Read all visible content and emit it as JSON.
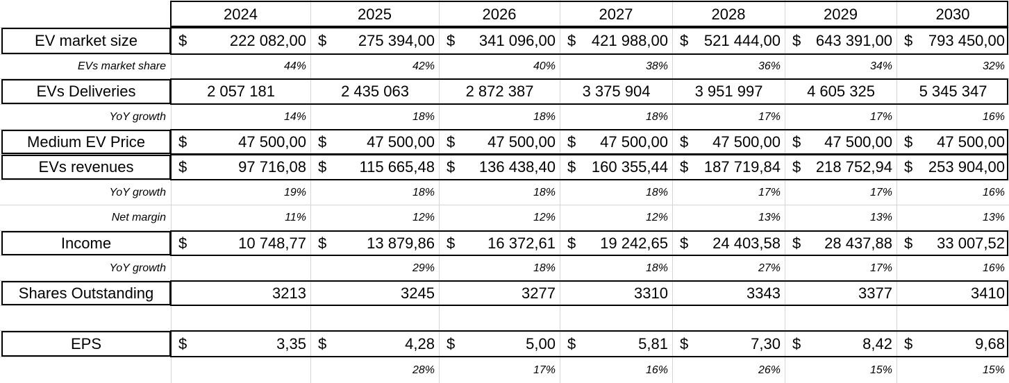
{
  "years": [
    "2024",
    "2025",
    "2026",
    "2027",
    "2028",
    "2029",
    "2030"
  ],
  "currency_symbol": "$",
  "rows": [
    {
      "key": "market_size",
      "label": "EV market size",
      "kind": "currency",
      "values": [
        "222 082,00",
        "275 394,00",
        "341 096,00",
        "421 988,00",
        "521 444,00",
        "643 391,00",
        "793 450,00"
      ]
    },
    {
      "key": "market_share",
      "label": "EVs market share",
      "kind": "pct",
      "values": [
        "44%",
        "42%",
        "40%",
        "38%",
        "36%",
        "34%",
        "32%"
      ]
    },
    {
      "key": "deliveries",
      "label": "EVs Deliveries",
      "kind": "centered",
      "values": [
        "2 057 181",
        "2 435 063",
        "2 872 387",
        "3 375 904",
        "3 951 997",
        "4 605 325",
        "5 345 347"
      ]
    },
    {
      "key": "deliveries_yoy",
      "label": "YoY growth",
      "kind": "pct",
      "values": [
        "14%",
        "18%",
        "18%",
        "18%",
        "17%",
        "17%",
        "16%"
      ]
    },
    {
      "key": "ev_price",
      "label": "Medium EV Price",
      "kind": "currency",
      "values": [
        "47 500,00",
        "47 500,00",
        "47 500,00",
        "47 500,00",
        "47 500,00",
        "47 500,00",
        "47 500,00"
      ]
    },
    {
      "key": "revenues",
      "label": "EVs revenues",
      "kind": "currency",
      "values": [
        "97 716,08",
        "115 665,48",
        "136 438,40",
        "160 355,44",
        "187 719,84",
        "218 752,94",
        "253 904,00"
      ]
    },
    {
      "key": "revenues_yoy",
      "label": "YoY growth",
      "kind": "pct",
      "values": [
        "19%",
        "18%",
        "18%",
        "18%",
        "17%",
        "17%",
        "16%"
      ]
    },
    {
      "key": "net_margin",
      "label": "Net margin",
      "kind": "pct",
      "values": [
        "11%",
        "12%",
        "12%",
        "12%",
        "13%",
        "13%",
        "13%"
      ]
    },
    {
      "key": "income",
      "label": "Income",
      "kind": "currency",
      "values": [
        "10 748,77",
        "13 879,86",
        "16 372,61",
        "19 242,65",
        "24 403,58",
        "28 437,88",
        "33 007,52"
      ]
    },
    {
      "key": "income_yoy",
      "label": "YoY growth",
      "kind": "pct",
      "values": [
        "",
        "29%",
        "18%",
        "18%",
        "27%",
        "17%",
        "16%"
      ]
    },
    {
      "key": "shares",
      "label": "Shares Outstanding",
      "kind": "right",
      "values": [
        "3213",
        "3245",
        "3277",
        "3310",
        "3343",
        "3377",
        "3410"
      ]
    },
    {
      "key": "blank",
      "label": "",
      "kind": "blank",
      "values": [
        "",
        "",
        "",
        "",
        "",
        "",
        ""
      ]
    },
    {
      "key": "eps",
      "label": "EPS",
      "kind": "currency",
      "values": [
        "3,35",
        "4,28",
        "5,00",
        "5,81",
        "7,30",
        "8,42",
        "9,68"
      ]
    },
    {
      "key": "eps_yoy",
      "label": "",
      "kind": "pct",
      "values": [
        "",
        "28%",
        "17%",
        "16%",
        "26%",
        "15%",
        "15%"
      ]
    }
  ]
}
